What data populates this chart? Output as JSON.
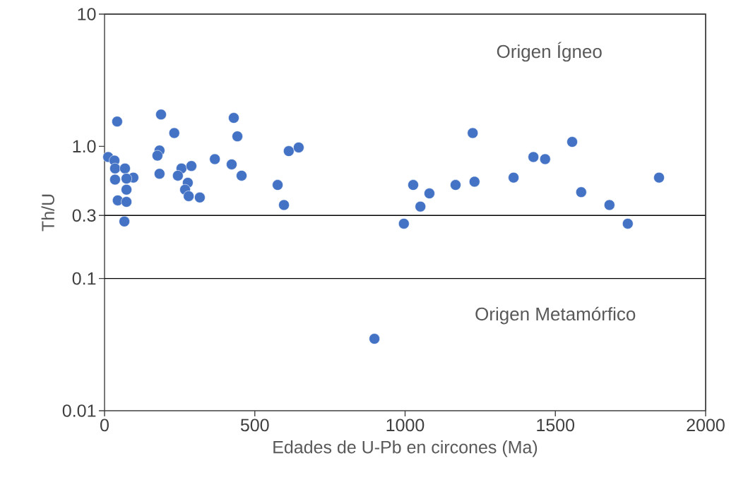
{
  "chart_data": {
    "type": "scatter",
    "xlabel": "Edades de U-Pb en circones (Ma)",
    "ylabel": "Th/U",
    "x": [
      42,
      188,
      430,
      232,
      442,
      183,
      176,
      12,
      33,
      613,
      646,
      367,
      423,
      35,
      68,
      256,
      289,
      183,
      244,
      96,
      73,
      35,
      456,
      277,
      576,
      73,
      268,
      280,
      44,
      73,
      317,
      597,
      66,
      1225,
      1556,
      1427,
      1466,
      1361,
      1845,
      1027,
      1168,
      1231,
      1081,
      1586,
      1051,
      1680,
      996,
      1741,
      898
    ],
    "values": [
      1.54,
      1.74,
      1.64,
      1.26,
      1.19,
      0.93,
      0.85,
      0.83,
      0.78,
      0.92,
      0.98,
      0.8,
      0.73,
      0.68,
      0.68,
      0.68,
      0.71,
      0.62,
      0.6,
      0.58,
      0.57,
      0.56,
      0.6,
      0.53,
      0.51,
      0.47,
      0.47,
      0.42,
      0.39,
      0.38,
      0.41,
      0.36,
      0.27,
      1.26,
      1.08,
      0.83,
      0.8,
      0.58,
      0.58,
      0.51,
      0.51,
      0.54,
      0.44,
      0.45,
      0.35,
      0.36,
      0.26,
      0.26,
      0.035
    ],
    "color": "#4472c4",
    "marker": "circle",
    "log": "y",
    "grid": false,
    "xlim": [
      0,
      2000
    ],
    "xticks": [
      0,
      500,
      1000,
      1500,
      2000
    ],
    "ylim": [
      0.01,
      10
    ],
    "yticks": [
      0.01,
      0.1,
      0.3,
      {
        "value": 1,
        "label": "1.0"
      },
      10
    ],
    "ref_lines": [
      {
        "axis": "y",
        "value": 0.3,
        "color": "#000000"
      },
      {
        "axis": "y",
        "value": 0.1,
        "color": "#000000"
      }
    ],
    "annotations": [
      "Origen Ígneo",
      "Origen Metamórfico"
    ]
  }
}
